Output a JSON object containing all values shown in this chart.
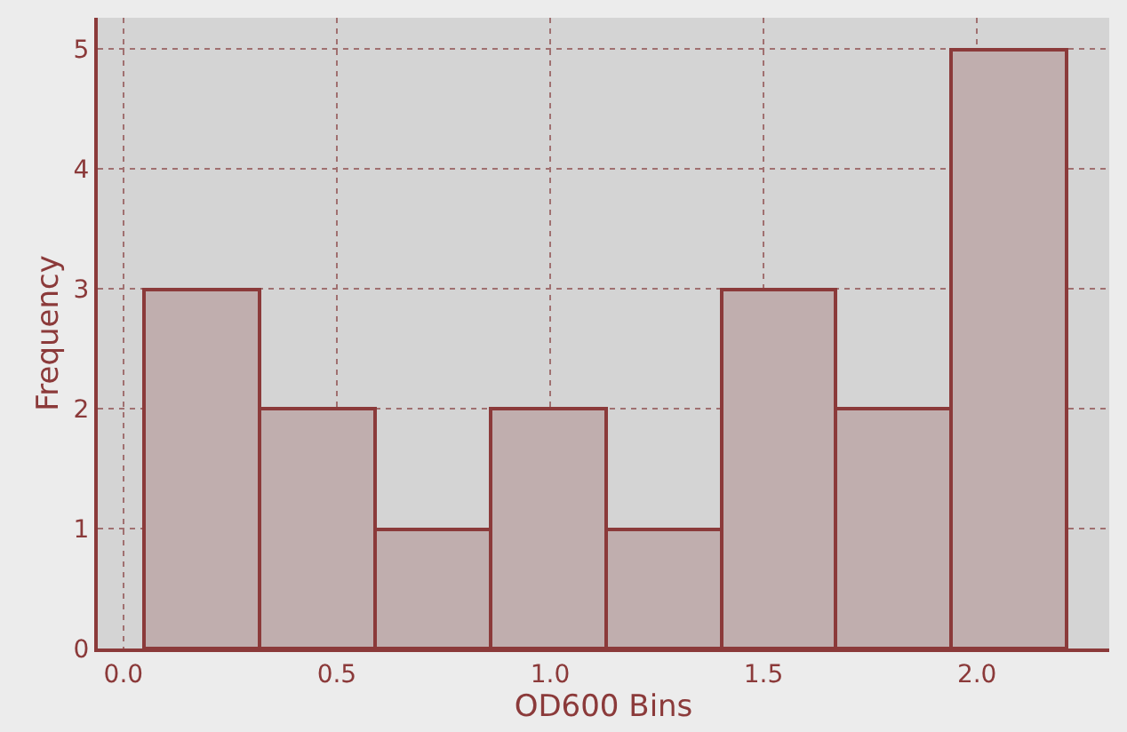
{
  "chart_data": {
    "type": "histogram",
    "xlabel": "OD600 Bins",
    "ylabel": "Frequency",
    "bins": [
      0.05,
      0.32,
      0.59,
      0.86,
      1.13,
      1.4,
      1.67,
      1.94,
      2.21
    ],
    "values": [
      3,
      2,
      1,
      2,
      1,
      3,
      2,
      5
    ],
    "color": "#c0aeae",
    "xlim": [
      -0.06,
      2.31
    ],
    "ylim": [
      0,
      5.26
    ],
    "xticks": [
      {
        "value": 0,
        "label": "0.0"
      },
      0.5,
      {
        "value": 1,
        "label": "1.0"
      },
      1.5,
      {
        "value": 2,
        "label": "2.0"
      }
    ],
    "yticks": [
      0,
      1,
      2,
      3,
      4,
      5
    ],
    "grid": true
  }
}
